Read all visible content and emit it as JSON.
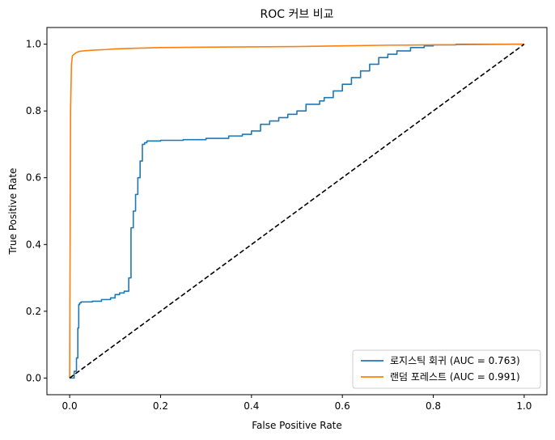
{
  "chart_data": {
    "type": "line",
    "title": "ROC 커브 비교",
    "xlabel": "False Positive Rate",
    "ylabel": "True Positive Rate",
    "xlim": [
      -0.05,
      1.05
    ],
    "ylim": [
      -0.05,
      1.05
    ],
    "xticks": [
      "0.0",
      "0.2",
      "0.4",
      "0.6",
      "0.8",
      "1.0"
    ],
    "yticks": [
      "0.0",
      "0.2",
      "0.4",
      "0.6",
      "0.8",
      "1.0"
    ],
    "grid": false,
    "legend_position": "lower-right",
    "series": [
      {
        "name": "로지스틱 회귀 (AUC = 0.763)",
        "color": "#1f77b4",
        "style": "step",
        "x": [
          0,
          0.01,
          0.015,
          0.018,
          0.02,
          0.022,
          0.025,
          0.05,
          0.07,
          0.09,
          0.1,
          0.11,
          0.12,
          0.13,
          0.135,
          0.14,
          0.145,
          0.15,
          0.155,
          0.16,
          0.165,
          0.17,
          0.2,
          0.25,
          0.3,
          0.35,
          0.38,
          0.4,
          0.42,
          0.44,
          0.46,
          0.48,
          0.5,
          0.52,
          0.55,
          0.56,
          0.58,
          0.6,
          0.62,
          0.64,
          0.66,
          0.68,
          0.7,
          0.72,
          0.75,
          0.78,
          0.8,
          0.85,
          0.9,
          0.95,
          1.0
        ],
        "y": [
          0,
          0.02,
          0.06,
          0.15,
          0.22,
          0.225,
          0.228,
          0.23,
          0.235,
          0.24,
          0.25,
          0.255,
          0.26,
          0.3,
          0.45,
          0.5,
          0.55,
          0.6,
          0.65,
          0.7,
          0.705,
          0.71,
          0.712,
          0.714,
          0.718,
          0.725,
          0.73,
          0.74,
          0.76,
          0.77,
          0.78,
          0.79,
          0.8,
          0.82,
          0.83,
          0.84,
          0.86,
          0.88,
          0.9,
          0.92,
          0.94,
          0.96,
          0.97,
          0.98,
          0.99,
          0.995,
          0.998,
          1.0,
          1.0,
          1.0,
          1.0
        ]
      },
      {
        "name": "랜덤 포레스트 (AUC = 0.991)",
        "color": "#ff7f0e",
        "style": "line",
        "x": [
          0,
          0.002,
          0.004,
          0.006,
          0.01,
          0.015,
          0.02,
          0.03,
          0.05,
          0.08,
          0.1,
          0.15,
          0.2,
          0.3,
          0.4,
          0.5,
          0.6,
          0.7,
          0.8,
          0.9,
          1.0
        ],
        "y": [
          0,
          0.8,
          0.94,
          0.965,
          0.97,
          0.975,
          0.978,
          0.98,
          0.982,
          0.984,
          0.986,
          0.988,
          0.99,
          0.991,
          0.992,
          0.993,
          0.995,
          0.997,
          0.998,
          0.999,
          1.0
        ]
      },
      {
        "name": "",
        "color": "#000000",
        "style": "dashed",
        "x": [
          0,
          1
        ],
        "y": [
          0,
          1
        ]
      }
    ]
  }
}
